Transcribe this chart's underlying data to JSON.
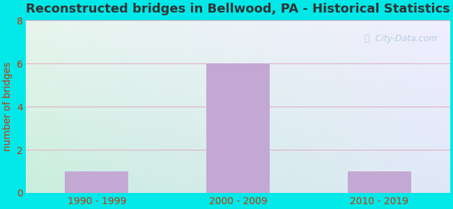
{
  "title": "Reconstructed bridges in Bellwood, PA - Historical Statistics",
  "categories": [
    "1990 - 1999",
    "2000 - 2009",
    "2010 - 2019"
  ],
  "values": [
    1,
    6,
    1
  ],
  "bar_color": "#c4a8d4",
  "ylabel": "number of bridges",
  "ylim": [
    0,
    8
  ],
  "yticks": [
    0,
    2,
    4,
    6,
    8
  ],
  "background_outer": "#00e8e8",
  "background_plot_top_left": "#e8f5f0",
  "background_plot_top_right": "#f8f5ff",
  "background_plot_bottom": "#d8f0e8",
  "title_color": "#333333",
  "axis_label_color": "#cc3300",
  "tick_label_color": "#cc3300",
  "grid_color": "#e0b0c0",
  "title_fontsize": 13,
  "label_fontsize": 10,
  "tick_fontsize": 10,
  "watermark_color": "#aac8d8"
}
